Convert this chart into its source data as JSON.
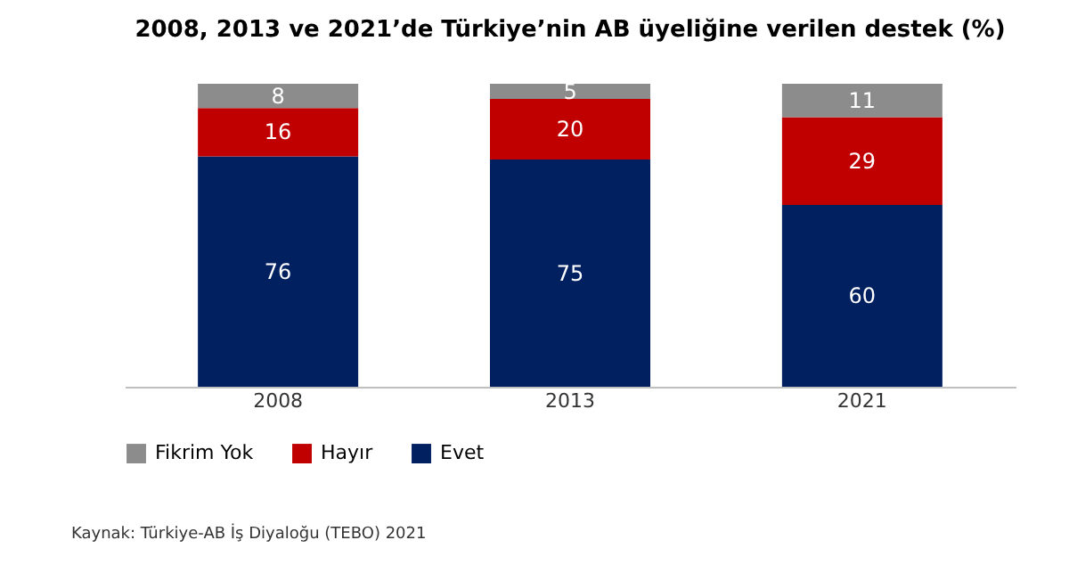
{
  "chart_data": {
    "type": "bar",
    "title": "2008, 2013 ve 2021’de Türkiye’nin AB üyeliğine verilen destek (%)",
    "categories": [
      "2008",
      "2013",
      "2021"
    ],
    "stacked": true,
    "data_labels": true,
    "legend": "bottom",
    "grid": false,
    "series": [
      {
        "name": "Evet",
        "color": "#002060",
        "values": [
          76,
          75,
          60
        ]
      },
      {
        "name": "Hayır",
        "color": "#c00000",
        "values": [
          16,
          20,
          29
        ]
      },
      {
        "name": "Fikrim Yok",
        "color": "#8c8c8c",
        "values": [
          8,
          5,
          11
        ]
      }
    ],
    "annotations": [
      "Kaynak: Türkiye-AB İş Diyaloğu (TEBO) 2021"
    ]
  }
}
